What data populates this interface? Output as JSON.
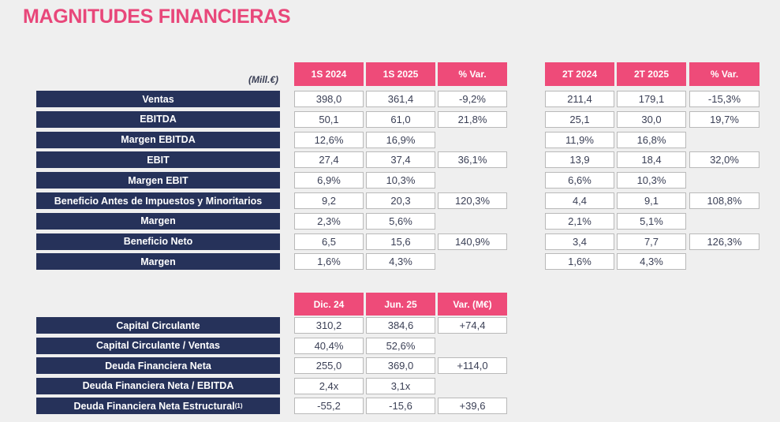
{
  "title": "MAGNITUDES FINANCIERAS",
  "unit_label": "(Mill.€)",
  "table1": {
    "headers_h1": [
      "1S 2024",
      "1S 2025",
      "% Var."
    ],
    "headers_q2": [
      "2T 2024",
      "2T 2025",
      "% Var."
    ],
    "rows": [
      {
        "label": "Ventas",
        "h1": [
          "398,0",
          "361,4",
          "-9,2%"
        ],
        "q2": [
          "211,4",
          "179,1",
          "-15,3%"
        ]
      },
      {
        "label": "EBITDA",
        "h1": [
          "50,1",
          "61,0",
          "21,8%"
        ],
        "q2": [
          "25,1",
          "30,0",
          "19,7%"
        ]
      },
      {
        "label": "Margen EBITDA",
        "h1": [
          "12,6%",
          "16,9%",
          ""
        ],
        "q2": [
          "11,9%",
          "16,8%",
          ""
        ]
      },
      {
        "label": "EBIT",
        "h1": [
          "27,4",
          "37,4",
          "36,1%"
        ],
        "q2": [
          "13,9",
          "18,4",
          "32,0%"
        ]
      },
      {
        "label": "Margen EBIT",
        "h1": [
          "6,9%",
          "10,3%",
          ""
        ],
        "q2": [
          "6,6%",
          "10,3%",
          ""
        ]
      },
      {
        "label": "Beneficio Antes de Impuestos y Minoritarios",
        "h1": [
          "9,2",
          "20,3",
          "120,3%"
        ],
        "q2": [
          "4,4",
          "9,1",
          "108,8%"
        ]
      },
      {
        "label": "Margen",
        "h1": [
          "2,3%",
          "5,6%",
          ""
        ],
        "q2": [
          "2,1%",
          "5,1%",
          ""
        ]
      },
      {
        "label": "Beneficio Neto",
        "h1": [
          "6,5",
          "15,6",
          "140,9%"
        ],
        "q2": [
          "3,4",
          "7,7",
          "126,3%"
        ]
      },
      {
        "label": "Margen",
        "h1": [
          "1,6%",
          "4,3%",
          ""
        ],
        "q2": [
          "1,6%",
          "4,3%",
          ""
        ]
      }
    ]
  },
  "table2": {
    "headers": [
      "Dic. 24",
      "Jun. 25",
      "Var. (M€)"
    ],
    "rows": [
      {
        "label": "Capital Circulante",
        "sup": "",
        "values": [
          "310,2",
          "384,6",
          "+74,4"
        ]
      },
      {
        "label": "Capital Circulante / Ventas",
        "sup": "",
        "values": [
          "40,4%",
          "52,6%",
          ""
        ]
      },
      {
        "label": "Deuda Financiera Neta",
        "sup": "",
        "values": [
          "255,0",
          "369,0",
          "+114,0"
        ]
      },
      {
        "label": "Deuda Financiera Neta / EBITDA",
        "sup": "",
        "values": [
          "2,4x",
          "3,1x",
          ""
        ]
      },
      {
        "label": "Deuda Financiera Neta Estructural",
        "sup": "(1)",
        "values": [
          "-55,2",
          "-15,6",
          "+39,6"
        ]
      }
    ]
  },
  "colors": {
    "accent": "#ee4b79",
    "title": "#e8477a",
    "label_bg": "#26325a"
  }
}
